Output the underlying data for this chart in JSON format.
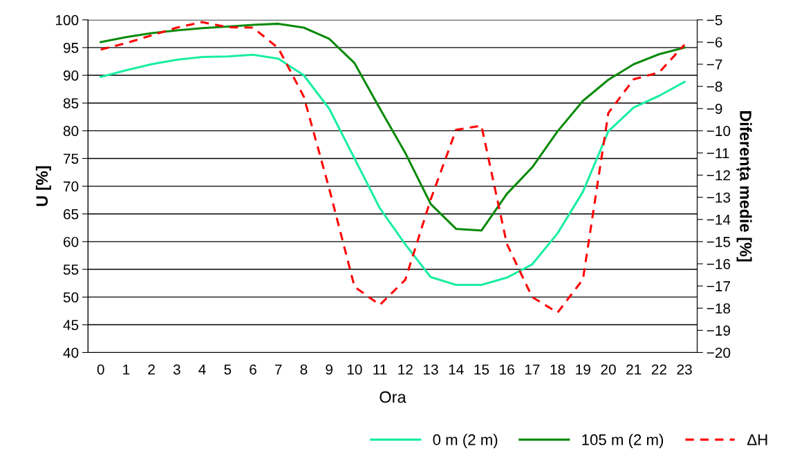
{
  "chart_data": {
    "type": "line",
    "xlabel": "Ora",
    "ylabel": "U [%]",
    "y2label": "Diferența medie [%]",
    "categories": [
      "0",
      "1",
      "2",
      "3",
      "4",
      "5",
      "6",
      "7",
      "8",
      "9",
      "10",
      "11",
      "12",
      "13",
      "14",
      "15",
      "16",
      "17",
      "18",
      "19",
      "20",
      "21",
      "22",
      "23"
    ],
    "series": [
      {
        "name": "0 m (2 m)",
        "color": "#1aeea0",
        "values": [
          89.7,
          90.9,
          92.0,
          92.8,
          93.3,
          93.4,
          93.7,
          93.0,
          90.0,
          84.0,
          75.0,
          66.0,
          59.5,
          53.6,
          52.2,
          52.2,
          53.5,
          55.9,
          61.5,
          69.0,
          79.9,
          84.2,
          86.3,
          88.8
        ]
      },
      {
        "name": "105 m (2 m)",
        "color": "#0a8a0a",
        "values": [
          96.0,
          96.9,
          97.6,
          98.1,
          98.5,
          98.8,
          99.1,
          99.3,
          98.6,
          96.6,
          92.2,
          84.0,
          76.0,
          66.8,
          62.3,
          62.0,
          68.6,
          73.4,
          79.9,
          85.4,
          89.2,
          92.0,
          93.8,
          95.0
        ]
      },
      {
        "name": "ΔH",
        "color": "#ff0000",
        "axis": "y2",
        "line_style": "dashed",
        "values": [
          -6.34,
          -6.05,
          -5.7,
          -5.35,
          -5.1,
          -5.33,
          -5.35,
          -6.28,
          -8.46,
          -12.6,
          -17.04,
          -17.85,
          -16.72,
          -13.1,
          -9.96,
          -9.77,
          -15.1,
          -17.5,
          -18.2,
          -16.7,
          -9.2,
          -7.68,
          -7.37,
          -6.12
        ]
      }
    ],
    "ylim": [
      40,
      100
    ],
    "yticks": [
      40,
      45,
      50,
      55,
      60,
      65,
      70,
      75,
      80,
      85,
      90,
      95,
      100
    ],
    "y2lim": [
      -20,
      -5
    ],
    "y2ticks": [
      {
        "value": -20,
        "label": "−20"
      },
      {
        "value": -19,
        "label": "−19"
      },
      {
        "value": -18,
        "label": "−18"
      },
      {
        "value": -17,
        "label": "−17"
      },
      {
        "value": -16,
        "label": "−16"
      },
      {
        "value": -15,
        "label": "−15"
      },
      {
        "value": -14,
        "label": "−14"
      },
      {
        "value": -13,
        "label": "−13"
      },
      {
        "value": -12,
        "label": "−12"
      },
      {
        "value": -11,
        "label": "−11"
      },
      {
        "value": -10,
        "label": "−10"
      },
      {
        "value": -9,
        "label": "−9"
      },
      {
        "value": -8,
        "label": "−8"
      },
      {
        "value": -7,
        "label": "−7"
      },
      {
        "value": -6,
        "label": "−6"
      },
      {
        "value": -5,
        "label": "−5"
      }
    ],
    "grid": "y",
    "legend": "bottom right",
    "marker": "none",
    "line_style": "solid"
  }
}
